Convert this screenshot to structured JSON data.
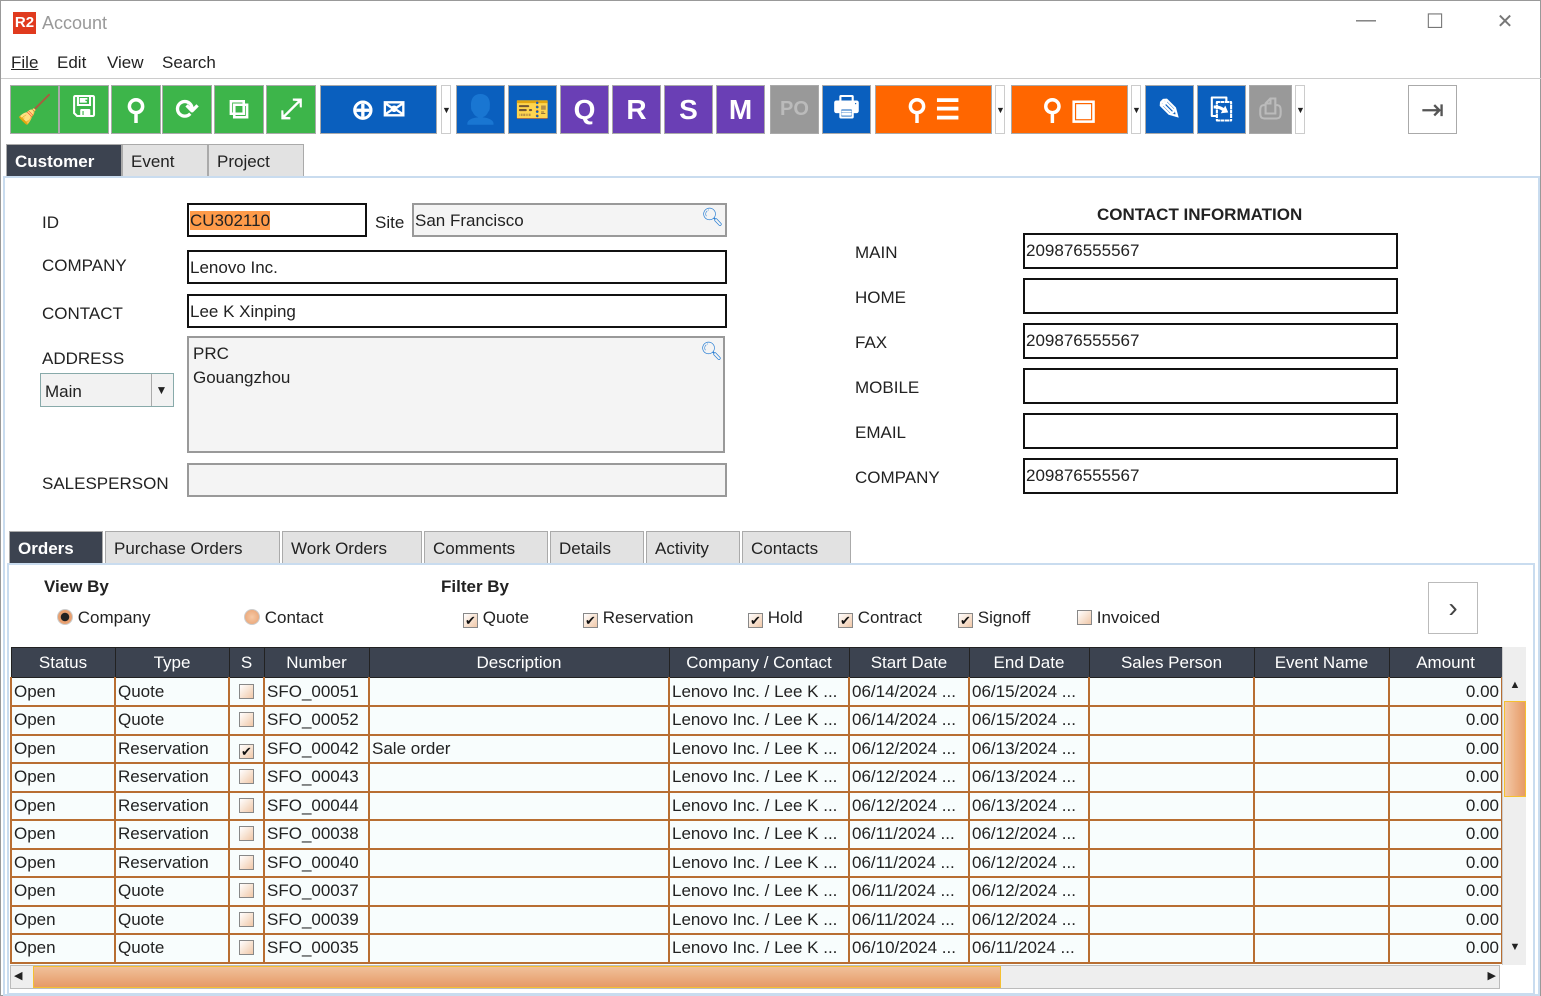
{
  "window": {
    "logo": "R2",
    "title": "Account",
    "minimize": "—",
    "maximize": "☐",
    "close": "✕"
  },
  "menu": [
    "File",
    "Edit",
    "View",
    "Search"
  ],
  "toolbar": {
    "colors": {
      "green": "#3db54a",
      "blue": "#0a5fbe",
      "purple": "#6a3fb5",
      "orange": "#ff6600",
      "gray": "#999999"
    },
    "doc_letters": [
      "Q",
      "R",
      "S",
      "M",
      "PO"
    ]
  },
  "top_tabs": [
    {
      "label": "Customer",
      "active": true
    },
    {
      "label": "Event"
    },
    {
      "label": "Project"
    }
  ],
  "customer": {
    "id_label": "ID",
    "id_value": "CU302110",
    "site_label": "Site",
    "site_value": "San Francisco",
    "company_label": "COMPANY",
    "company_value": "Lenovo Inc.",
    "contact_label": "CONTACT",
    "contact_value": "Lee K Xinping",
    "address_label": "ADDRESS",
    "address_type": "Main",
    "address_line1": "PRC",
    "address_line2": "Gouangzhou",
    "salesperson_label": "SALESPERSON",
    "salesperson_value": ""
  },
  "contact_info": {
    "heading": "CONTACT INFORMATION",
    "fields": [
      {
        "label": "MAIN",
        "value": "209876555567"
      },
      {
        "label": "HOME",
        "value": ""
      },
      {
        "label": "FAX",
        "value": "209876555567"
      },
      {
        "label": "MOBILE",
        "value": ""
      },
      {
        "label": "EMAIL",
        "value": ""
      },
      {
        "label": "COMPANY",
        "value": "209876555567"
      }
    ]
  },
  "sub_tabs": [
    {
      "label": "Orders",
      "active": true
    },
    {
      "label": "Purchase Orders"
    },
    {
      "label": "Work Orders"
    },
    {
      "label": "Comments"
    },
    {
      "label": "Details"
    },
    {
      "label": "Activity"
    },
    {
      "label": "Contacts"
    }
  ],
  "view_by": {
    "label": "View By",
    "options": [
      {
        "label": "Company",
        "selected": true
      },
      {
        "label": "Contact",
        "selected": false
      }
    ]
  },
  "filter_by": {
    "label": "Filter By",
    "options": [
      {
        "label": "Quote",
        "checked": true
      },
      {
        "label": "Reservation",
        "checked": true
      },
      {
        "label": "Hold",
        "checked": true
      },
      {
        "label": "Contract",
        "checked": true
      },
      {
        "label": "Signoff",
        "checked": true
      },
      {
        "label": "Invoiced",
        "checked": false
      }
    ]
  },
  "orders": {
    "columns": [
      "Status",
      "Type",
      "S",
      "Number",
      "Description",
      "Company / Contact",
      "Start Date",
      "End Date",
      "Sales Person",
      "Event Name",
      "Amount"
    ],
    "rows": [
      [
        "Open",
        "Quote",
        false,
        "SFO_00051",
        "",
        "Lenovo Inc. / Lee K ...",
        "06/14/2024 ...",
        "06/15/2024 ...",
        "",
        "",
        "0.00"
      ],
      [
        "Open",
        "Quote",
        false,
        "SFO_00052",
        "",
        "Lenovo Inc. / Lee K ...",
        "06/14/2024 ...",
        "06/15/2024 ...",
        "",
        "",
        "0.00"
      ],
      [
        "Open",
        "Reservation",
        true,
        "SFO_00042",
        "Sale order",
        "Lenovo Inc. / Lee K ...",
        "06/12/2024 ...",
        "06/13/2024 ...",
        "",
        "",
        "0.00"
      ],
      [
        "Open",
        "Reservation",
        false,
        "SFO_00043",
        "",
        "Lenovo Inc. / Lee K ...",
        "06/12/2024 ...",
        "06/13/2024 ...",
        "",
        "",
        "0.00"
      ],
      [
        "Open",
        "Reservation",
        false,
        "SFO_00044",
        "",
        "Lenovo Inc. / Lee K ...",
        "06/12/2024 ...",
        "06/13/2024 ...",
        "",
        "",
        "0.00"
      ],
      [
        "Open",
        "Reservation",
        false,
        "SFO_00038",
        "",
        "Lenovo Inc. / Lee K ...",
        "06/11/2024 ...",
        "06/12/2024 ...",
        "",
        "",
        "0.00"
      ],
      [
        "Open",
        "Reservation",
        false,
        "SFO_00040",
        "",
        "Lenovo Inc. / Lee K ...",
        "06/11/2024 ...",
        "06/12/2024 ...",
        "",
        "",
        "0.00"
      ],
      [
        "Open",
        "Quote",
        false,
        "SFO_00037",
        "",
        "Lenovo Inc. / Lee K ...",
        "06/11/2024 ...",
        "06/12/2024 ...",
        "",
        "",
        "0.00"
      ],
      [
        "Open",
        "Quote",
        false,
        "SFO_00039",
        "",
        "Lenovo Inc. / Lee K ...",
        "06/11/2024 ...",
        "06/12/2024 ...",
        "",
        "",
        "0.00"
      ],
      [
        "Open",
        "Quote",
        false,
        "SFO_00035",
        "",
        "Lenovo Inc. / Lee K ...",
        "06/10/2024 ...",
        "06/11/2024 ...",
        "",
        "",
        "0.00"
      ]
    ]
  }
}
